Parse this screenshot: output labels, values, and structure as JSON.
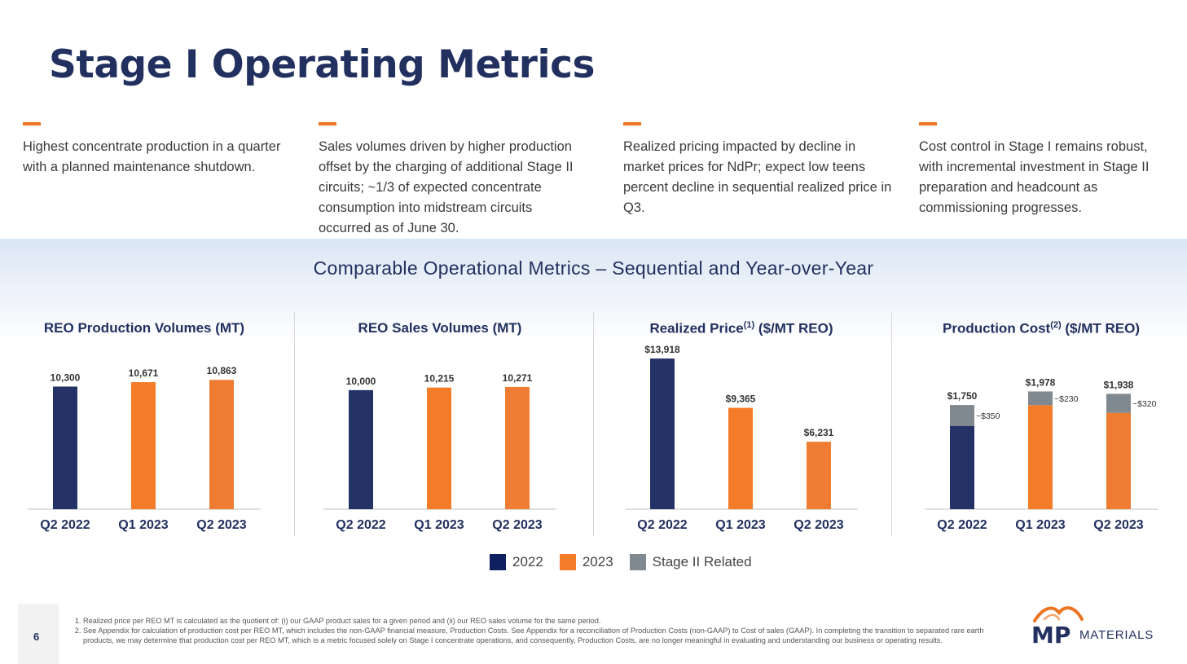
{
  "title": "Stage I Operating Metrics",
  "columns": [
    {
      "text": "Highest concentrate production in a quarter with a planned maintenance shutdown."
    },
    {
      "text": "Sales volumes driven by higher production offset by the charging of additional Stage II circuits; ~1/3 of expected concentrate consumption into midstream circuits occurred as of June 30."
    },
    {
      "text": "Realized pricing impacted by decline in market prices for NdPr; expect low teens percent decline in sequential realized price in Q3."
    },
    {
      "text": "Cost control in Stage I remains robust, with incremental investment in Stage II preparation and headcount as commissioning progresses."
    }
  ],
  "subtitle": "Comparable Operational Metrics – Sequential and Year-over-Year",
  "colors": {
    "navy": "#243266",
    "orange": "#f47b28",
    "orange2": "#ee7c33",
    "gray": "#808890",
    "accent": "#ed7423"
  },
  "chart_data": [
    {
      "type": "bar",
      "title": "REO Production Volumes (MT)",
      "categories": [
        "Q2 2022",
        "Q1 2023",
        "Q2 2023"
      ],
      "values": [
        10300,
        10671,
        10863
      ],
      "labels": [
        "10,300",
        "10,671",
        "10,863"
      ],
      "ylim": [
        0,
        13000
      ]
    },
    {
      "type": "bar",
      "title": "REO Sales Volumes (MT)",
      "categories": [
        "Q2 2022",
        "Q1 2023",
        "Q2 2023"
      ],
      "values": [
        10000,
        10215,
        10271
      ],
      "labels": [
        "10,000",
        "10,215",
        "10,271"
      ],
      "ylim": [
        0,
        13000
      ]
    },
    {
      "type": "bar",
      "title": "Realized Price",
      "title_sup": "(1)",
      "title_suffix": " ($/MT REO)",
      "categories": [
        "Q2 2022",
        "Q1 2023",
        "Q2 2023"
      ],
      "values": [
        13918,
        9365,
        6231
      ],
      "labels": [
        "$13,918",
        "$9,365",
        "$6,231"
      ],
      "ylim": [
        0,
        14300
      ]
    },
    {
      "type": "bar",
      "stacked": true,
      "title": "Production Cost",
      "title_sup": "(2)",
      "title_suffix": " ($/MT REO)",
      "categories": [
        "Q2 2022",
        "Q1 2023",
        "Q2 2023"
      ],
      "values": [
        1750,
        1978,
        1938
      ],
      "stage2": [
        350,
        230,
        320
      ],
      "labels": [
        "$1,750",
        "$1,978",
        "$1,938"
      ],
      "stage2_labels": [
        "~$350",
        "~$230",
        "~$320"
      ],
      "ylim": [
        0,
        2600
      ]
    }
  ],
  "legend": [
    {
      "label": "2022",
      "color": "#0f2060"
    },
    {
      "label": "2023",
      "color": "#f47b28"
    },
    {
      "label": "Stage II Related",
      "color": "#808890"
    }
  ],
  "page_number": "6",
  "notes": [
    "Realized price per REO MT is calculated as the quotient of: (i) our GAAP product sales for a given period and (ii) our REO sales volume for the same period.",
    "See Appendix for calculation of production cost per REO MT, which includes the non-GAAP financial measure, Production Costs. See Appendix for a reconciliation of Production Costs (non-GAAP) to Cost of sales (GAAP). In completing the transition to separated rare earth products, we may determine that production cost per REO MT, which is a metric focused solely on Stage I concentrate operations, and consequently, Production Costs, are no longer meaningful in evaluating and understanding our business or operating results."
  ],
  "logo": {
    "mp": "MP",
    "materials": "MATERIALS"
  }
}
